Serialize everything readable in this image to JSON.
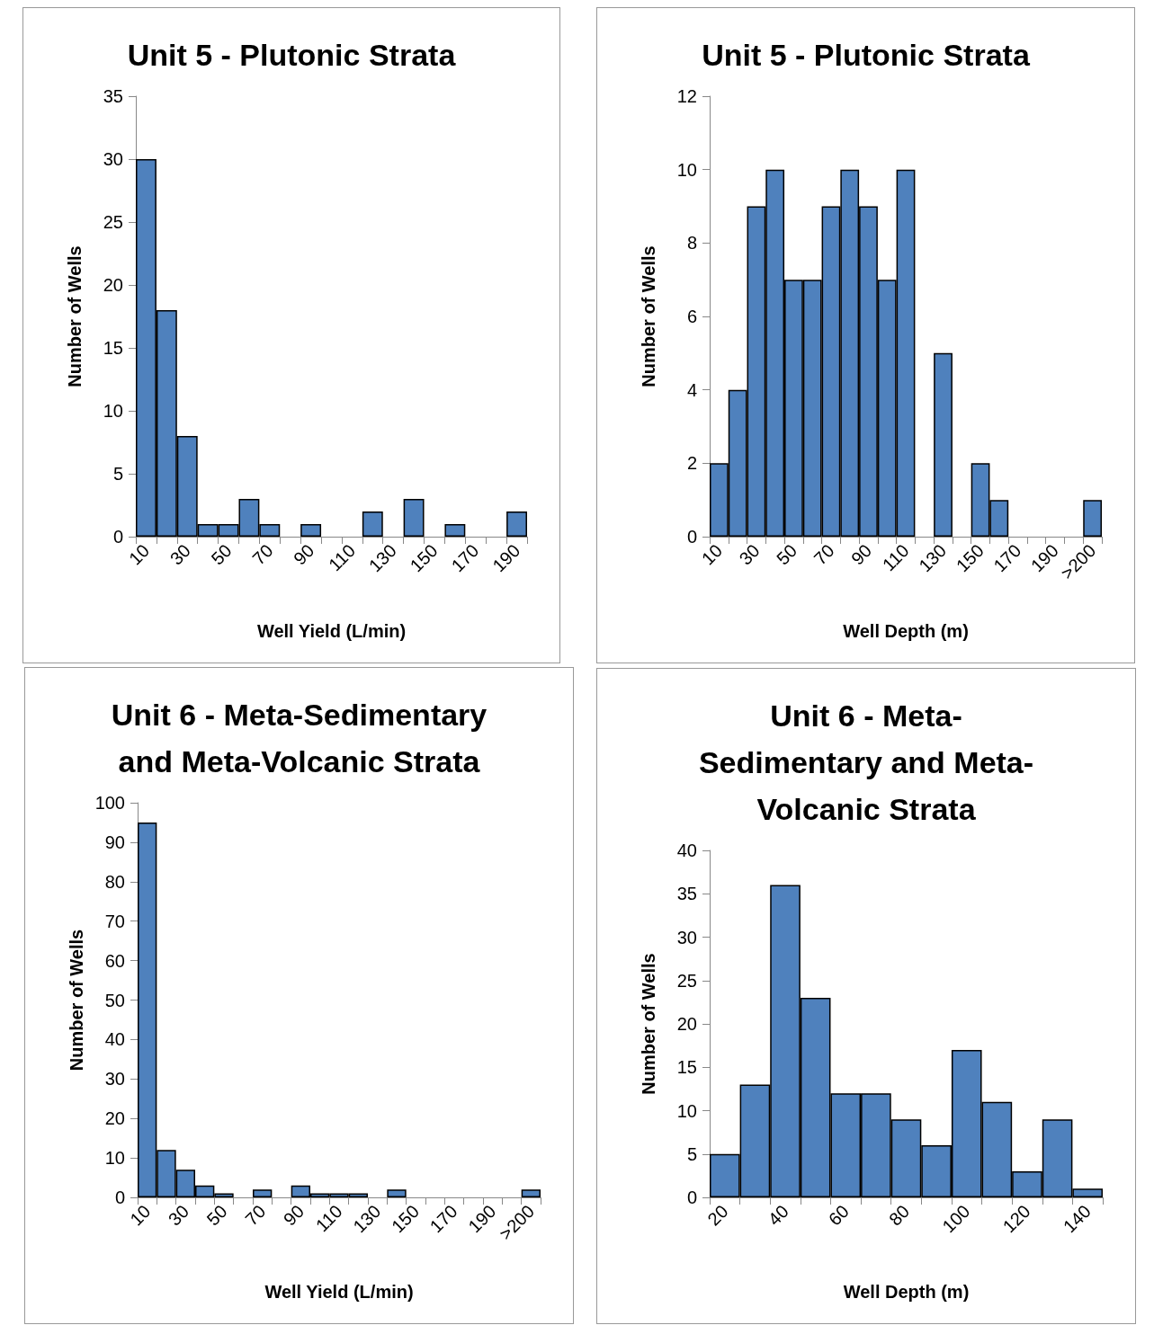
{
  "chart_data": [
    {
      "type": "bar",
      "title": "Unit 5 - Plutonic Strata",
      "xlabel": "Well Yield (L/min)",
      "ylabel": "Number of Wells",
      "categories": [
        "10",
        null,
        "30",
        null,
        "50",
        null,
        "70",
        null,
        "90",
        null,
        "110",
        null,
        "130",
        null,
        "150",
        null,
        "170",
        null,
        "190"
      ],
      "values": [
        30,
        18,
        8,
        1,
        1,
        3,
        1,
        0,
        1,
        0,
        0,
        2,
        0,
        3,
        0,
        1,
        0,
        0,
        2
      ],
      "color": "#4f81bd",
      "ylim": [
        0,
        35
      ],
      "yticks": [
        0,
        5,
        10,
        15,
        20,
        25,
        30,
        35
      ]
    },
    {
      "type": "bar",
      "title": "Unit 5 - Plutonic Strata",
      "xlabel": "Well Depth (m)",
      "ylabel": "Number of Wells",
      "categories": [
        "10",
        null,
        "30",
        null,
        "50",
        null,
        "70",
        null,
        "90",
        null,
        "110",
        null,
        "130",
        null,
        "150",
        null,
        "170",
        null,
        "190",
        null,
        ">200"
      ],
      "values": [
        2,
        4,
        9,
        10,
        7,
        7,
        9,
        10,
        9,
        7,
        10,
        0,
        5,
        0,
        2,
        1,
        0,
        0,
        0,
        0,
        1
      ],
      "color": "#4f81bd",
      "ylim": [
        0,
        12
      ],
      "yticks": [
        0,
        2,
        4,
        6,
        8,
        10,
        12
      ]
    },
    {
      "type": "bar",
      "title": "Unit 6 - Meta-Sedimentary and Meta-Volcanic Strata",
      "xlabel": "Well Yield (L/min)",
      "ylabel": "Number of Wells",
      "categories": [
        "10",
        null,
        "30",
        null,
        "50",
        null,
        "70",
        null,
        "90",
        null,
        "110",
        null,
        "130",
        null,
        "150",
        null,
        "170",
        null,
        "190",
        null,
        ">200"
      ],
      "values": [
        95,
        12,
        7,
        3,
        1,
        0,
        2,
        0,
        3,
        1,
        1,
        1,
        0,
        2,
        0,
        0,
        0,
        0,
        0,
        0,
        2
      ],
      "color": "#4f81bd",
      "ylim": [
        0,
        100
      ],
      "yticks": [
        0,
        10,
        20,
        30,
        40,
        50,
        60,
        70,
        80,
        90,
        100
      ]
    },
    {
      "type": "bar",
      "title": "Unit 6 - Meta-Sedimentary and Meta-Volcanic Strata",
      "xlabel": "Well Depth (m)",
      "ylabel": "Number of Wells",
      "categories": [
        "20",
        null,
        "40",
        null,
        "60",
        null,
        "80",
        null,
        "100",
        null,
        "120",
        null,
        "140"
      ],
      "values": [
        5,
        13,
        36,
        23,
        12,
        12,
        9,
        6,
        17,
        11,
        3,
        9,
        1
      ],
      "color": "#4f81bd",
      "ylim": [
        0,
        40
      ],
      "yticks": [
        0,
        5,
        10,
        15,
        20,
        25,
        30,
        35,
        40
      ]
    }
  ]
}
